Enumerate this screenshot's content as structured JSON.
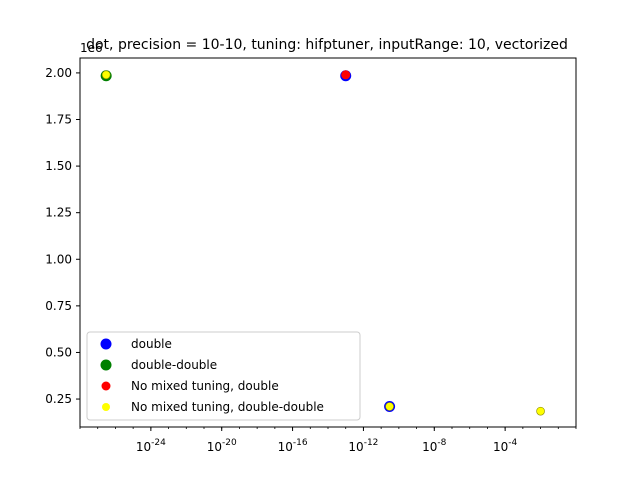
{
  "chart_data": {
    "type": "scatter",
    "title": "dot, precision = 10-10, tuning: hifptuner, inputRange: 10, vectorized",
    "xlabel": "",
    "ylabel": "",
    "x_scale": "log",
    "xlim": [
      1e-28,
      1.0
    ],
    "ylim": [
      100000.0,
      2080000.0
    ],
    "y_offset_label": "1e6",
    "x_tick_labels": [
      "10^-24",
      "10^-20",
      "10^-16",
      "10^-12",
      "10^-8",
      "10^-4"
    ],
    "x_ticks": [
      1e-24,
      1e-20,
      1e-16,
      1e-12,
      1e-08,
      0.0001
    ],
    "y_tick_labels": [
      "0.25",
      "0.50",
      "0.75",
      "1.00",
      "1.25",
      "1.50",
      "1.75",
      "2.00"
    ],
    "y_ticks": [
      250000.0,
      500000.0,
      750000.0,
      1000000.0,
      1250000.0,
      1500000.0,
      1750000.0,
      2000000.0
    ],
    "legend_position": "lower-left",
    "grid": false,
    "series": [
      {
        "name": "double",
        "color": "#0000ff",
        "marker_size": "large",
        "points": [
          {
            "x": 1e-13,
            "y": 1985000.0
          },
          {
            "x": 3e-11,
            "y": 210000.0
          }
        ]
      },
      {
        "name": "double-double",
        "color": "#008000",
        "marker_size": "large",
        "points": [
          {
            "x": 3e-27,
            "y": 1985000.0
          }
        ]
      },
      {
        "name": "No mixed tuning, double",
        "color": "#ff0000",
        "marker_size": "medium",
        "points": [
          {
            "x": 1e-13,
            "y": 1990000.0
          }
        ]
      },
      {
        "name": "No mixed tuning, double-double",
        "color": "#ffff00",
        "marker_size": "small",
        "points": [
          {
            "x": 3e-27,
            "y": 1990000.0
          },
          {
            "x": 3e-11,
            "y": 210000.0
          },
          {
            "x": 0.01,
            "y": 185000.0
          }
        ]
      }
    ]
  }
}
